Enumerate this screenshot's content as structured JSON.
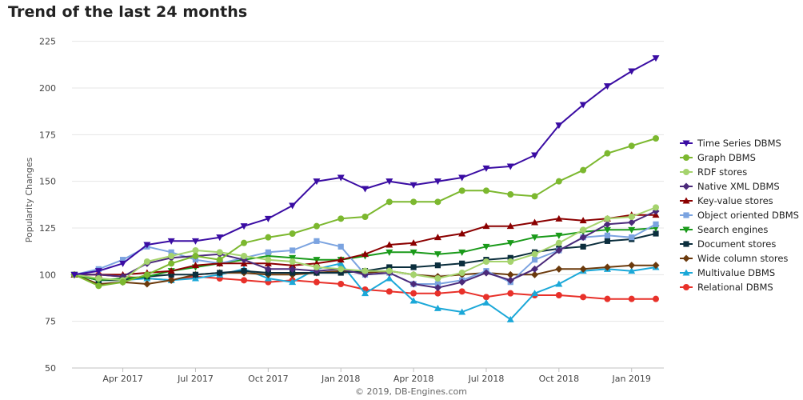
{
  "chart_data": {
    "type": "line",
    "title": "Trend of the last 24 months",
    "xlabel": "",
    "ylabel": "Popularity Changes",
    "ylim": [
      50,
      230
    ],
    "yticks": [
      50,
      75,
      100,
      125,
      150,
      175,
      200,
      225
    ],
    "x": [
      "2017-02",
      "2017-03",
      "2017-04",
      "2017-05",
      "2017-06",
      "2017-07",
      "2017-08",
      "2017-09",
      "2017-10",
      "2017-11",
      "2017-12",
      "2018-01",
      "2018-02",
      "2018-03",
      "2018-04",
      "2018-05",
      "2018-06",
      "2018-07",
      "2018-08",
      "2018-09",
      "2018-10",
      "2018-11",
      "2018-12",
      "2019-01",
      "2019-02"
    ],
    "xtick_labels": [
      {
        "x": "2017-04",
        "label": "Apr 2017"
      },
      {
        "x": "2017-07",
        "label": "Jul 2017"
      },
      {
        "x": "2017-10",
        "label": "Oct 2017"
      },
      {
        "x": "2018-01",
        "label": "Jan 2018"
      },
      {
        "x": "2018-04",
        "label": "Apr 2018"
      },
      {
        "x": "2018-07",
        "label": "Jul 2018"
      },
      {
        "x": "2018-10",
        "label": "Oct 2018"
      },
      {
        "x": "2019-01",
        "label": "Jan 2019"
      }
    ],
    "grid": "horizontal",
    "legend_position": "right",
    "credit": "© 2019, DB-Engines.com",
    "series": [
      {
        "name": "Time Series DBMS",
        "color": "#3a0ca3",
        "marker": "triangle-down",
        "values": [
          100,
          102,
          106,
          116,
          118,
          118,
          120,
          126,
          130,
          137,
          150,
          152,
          146,
          150,
          148,
          150,
          152,
          157,
          158,
          164,
          180,
          191,
          201,
          209,
          216
        ]
      },
      {
        "name": "Graph DBMS",
        "color": "#7cb82f",
        "marker": "circle",
        "values": [
          100,
          94,
          96,
          100,
          106,
          110,
          108,
          117,
          120,
          122,
          126,
          130,
          131,
          139,
          139,
          139,
          145,
          145,
          143,
          142,
          150,
          156,
          165,
          169,
          173
        ]
      },
      {
        "name": "RDF stores",
        "color": "#a5d36d",
        "marker": "circle",
        "values": [
          100,
          98,
          97,
          107,
          110,
          113,
          112,
          110,
          108,
          107,
          104,
          103,
          102,
          102,
          100,
          98,
          101,
          107,
          107,
          111,
          117,
          124,
          130,
          131,
          136
        ]
      },
      {
        "name": "Native XML DBMS",
        "color": "#4b2a7a",
        "marker": "diamond",
        "values": [
          100,
          100,
          99,
          106,
          109,
          110,
          111,
          108,
          103,
          103,
          102,
          103,
          100,
          101,
          95,
          93,
          96,
          101,
          97,
          103,
          113,
          120,
          127,
          128,
          134
        ]
      },
      {
        "name": "Key-value stores",
        "color": "#8b0000",
        "marker": "triangle-up",
        "values": [
          100,
          100,
          100,
          101,
          102,
          105,
          106,
          106,
          106,
          105,
          106,
          108,
          111,
          116,
          117,
          120,
          122,
          126,
          126,
          128,
          130,
          129,
          130,
          132,
          132
        ]
      },
      {
        "name": "Object oriented DBMS",
        "color": "#7ba3e0",
        "marker": "square",
        "values": [
          100,
          103,
          108,
          115,
          112,
          108,
          106,
          109,
          112,
          113,
          118,
          115,
          100,
          101,
          95,
          95,
          97,
          102,
          96,
          108,
          113,
          120,
          121,
          120,
          127
        ]
      },
      {
        "name": "Search engines",
        "color": "#1a9a1a",
        "marker": "triangle-down",
        "values": [
          100,
          97,
          98,
          99,
          102,
          104,
          106,
          108,
          110,
          109,
          108,
          108,
          110,
          112,
          112,
          111,
          112,
          115,
          117,
          120,
          121,
          123,
          124,
          124,
          125
        ]
      },
      {
        "name": "Document stores",
        "color": "#0b2e3d",
        "marker": "square",
        "values": [
          100,
          97,
          97,
          99,
          100,
          100,
          101,
          102,
          101,
          101,
          101,
          101,
          102,
          104,
          104,
          105,
          106,
          108,
          109,
          112,
          114,
          115,
          118,
          119,
          122
        ]
      },
      {
        "name": "Wide column stores",
        "color": "#6b3a0c",
        "marker": "diamond",
        "values": [
          100,
          95,
          96,
          95,
          97,
          100,
          101,
          101,
          100,
          100,
          101,
          102,
          101,
          102,
          100,
          99,
          100,
          101,
          100,
          100,
          103,
          103,
          104,
          105,
          105
        ]
      },
      {
        "name": "Multivalue DBMS",
        "color": "#1ba8d8",
        "marker": "triangle-up",
        "values": [
          100,
          97,
          97,
          98,
          97,
          98,
          100,
          103,
          98,
          96,
          103,
          106,
          90,
          98,
          86,
          82,
          80,
          85,
          76,
          90,
          95,
          102,
          103,
          102,
          104
        ]
      },
      {
        "name": "Relational DBMS",
        "color": "#e8312a",
        "marker": "circle",
        "values": [
          100,
          100,
          99,
          98,
          97,
          99,
          98,
          97,
          96,
          97,
          96,
          95,
          92,
          91,
          90,
          90,
          91,
          88,
          90,
          89,
          89,
          88,
          87,
          87,
          87
        ]
      }
    ]
  }
}
